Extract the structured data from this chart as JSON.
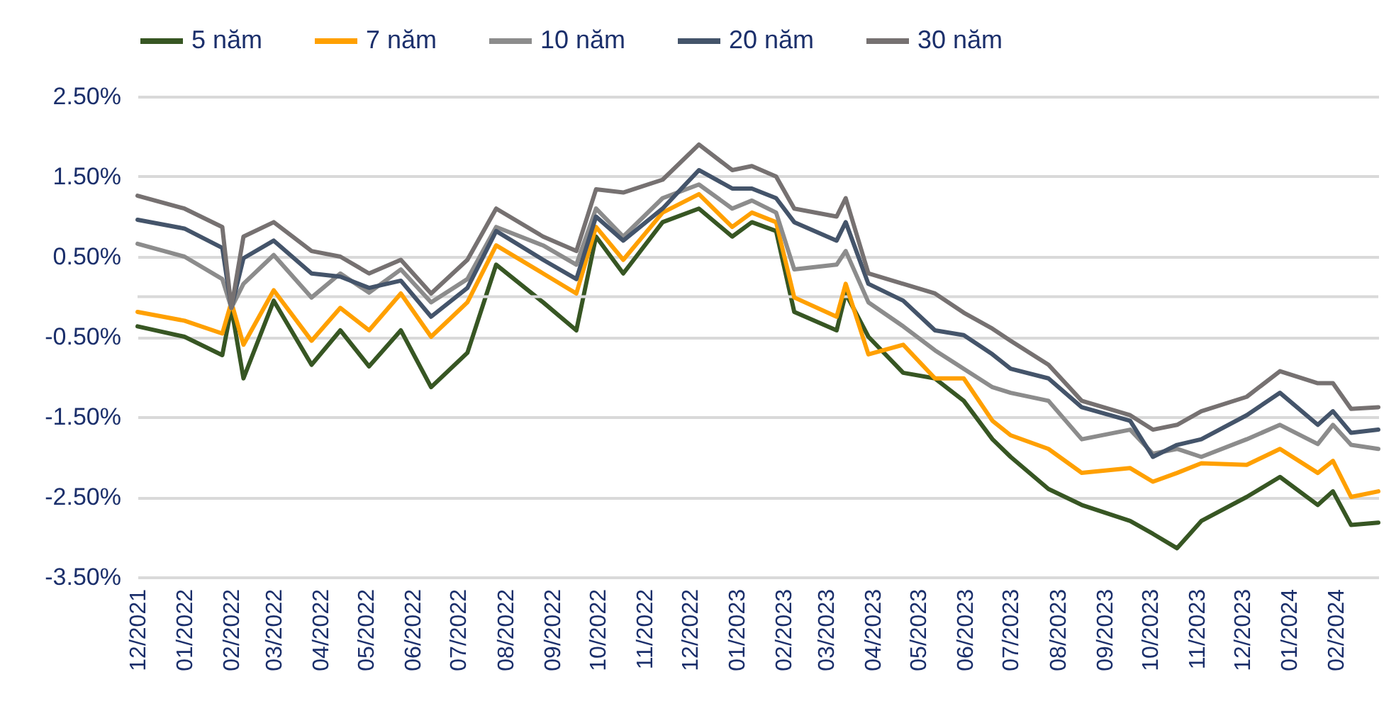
{
  "chart_data": {
    "type": "line",
    "x": [
      "2021-12-01",
      "2022-01-01",
      "2022-01-26",
      "2022-02-01",
      "2022-02-09",
      "2022-03-01",
      "2022-03-26",
      "2022-04-14",
      "2022-05-03",
      "2022-05-24",
      "2022-06-13",
      "2022-07-07",
      "2022-07-26",
      "2022-08-26",
      "2022-09-17",
      "2022-09-30",
      "2022-10-18",
      "2022-11-13",
      "2022-12-07",
      "2022-12-29",
      "2023-01-11",
      "2023-01-27",
      "2023-02-08",
      "2023-03-08",
      "2023-03-14",
      "2023-03-29",
      "2023-04-21",
      "2023-05-12",
      "2023-05-31",
      "2023-06-19",
      "2023-07-01",
      "2023-07-26",
      "2023-08-17",
      "2023-09-18",
      "2023-10-03",
      "2023-10-19",
      "2023-11-04",
      "2023-12-04",
      "2023-12-26",
      "2024-01-20",
      "2024-01-30",
      "2024-02-11",
      "2024-02-29"
    ],
    "series": [
      {
        "name": "5 năm",
        "color": "#375623",
        "values": [
          -0.37,
          -0.5,
          -0.73,
          -0.14,
          -1.02,
          -0.05,
          -0.85,
          -0.42,
          -0.87,
          -0.42,
          -1.13,
          -0.7,
          0.4,
          -0.07,
          -0.42,
          0.75,
          0.29,
          0.93,
          1.1,
          0.75,
          0.93,
          0.82,
          -0.19,
          -0.42,
          0.04,
          -0.5,
          -0.95,
          -1.02,
          -1.3,
          -1.78,
          -2.0,
          -2.4,
          -2.6,
          -2.8,
          -2.96,
          -3.14,
          -2.8,
          -2.5,
          -2.25,
          -2.6,
          -2.43,
          -2.85,
          -2.82
        ]
      },
      {
        "name": "7 năm",
        "color": "#ffa000",
        "values": [
          -0.19,
          -0.3,
          -0.46,
          -0.07,
          -0.6,
          0.08,
          -0.55,
          -0.14,
          -0.42,
          0.04,
          -0.5,
          -0.07,
          0.64,
          0.29,
          0.04,
          0.87,
          0.46,
          1.05,
          1.28,
          0.87,
          1.05,
          0.93,
          -0.01,
          -0.25,
          0.16,
          -0.72,
          -0.6,
          -1.02,
          -1.02,
          -1.55,
          -1.73,
          -1.9,
          -2.2,
          -2.14,
          -2.31,
          -2.2,
          -2.08,
          -2.1,
          -1.9,
          -2.2,
          -2.05,
          -2.5,
          -2.43
        ]
      },
      {
        "name": "10 năm",
        "color": "#8c8c8c",
        "values": [
          0.66,
          0.5,
          0.22,
          -0.14,
          0.16,
          0.52,
          -0.01,
          0.29,
          0.05,
          0.34,
          -0.07,
          0.22,
          0.87,
          0.64,
          0.4,
          1.1,
          0.75,
          1.23,
          1.4,
          1.1,
          1.2,
          1.05,
          0.34,
          0.4,
          0.57,
          -0.07,
          -0.37,
          -0.67,
          -0.9,
          -1.13,
          -1.2,
          -1.3,
          -1.78,
          -1.66,
          -1.96,
          -1.9,
          -2.0,
          -1.78,
          -1.6,
          -1.84,
          -1.6,
          -1.85,
          -1.9
        ]
      },
      {
        "name": "20 năm",
        "color": "#44546a",
        "values": [
          0.96,
          0.85,
          0.61,
          -0.14,
          0.48,
          0.7,
          0.29,
          0.25,
          0.11,
          0.2,
          -0.25,
          0.11,
          0.82,
          0.46,
          0.22,
          1.0,
          0.7,
          1.1,
          1.58,
          1.35,
          1.35,
          1.23,
          0.93,
          0.7,
          0.93,
          0.16,
          -0.05,
          -0.42,
          -0.48,
          -0.72,
          -0.9,
          -1.02,
          -1.38,
          -1.55,
          -2.0,
          -1.85,
          -1.78,
          -1.48,
          -1.2,
          -1.6,
          -1.43,
          -1.7,
          -1.66
        ]
      },
      {
        "name": "30 năm",
        "color": "#767171",
        "values": [
          1.26,
          1.1,
          0.87,
          -0.14,
          0.75,
          0.93,
          0.57,
          0.5,
          0.29,
          0.46,
          0.04,
          0.46,
          1.1,
          0.75,
          0.57,
          1.34,
          1.3,
          1.46,
          1.9,
          1.58,
          1.63,
          1.5,
          1.1,
          1.0,
          1.23,
          0.29,
          0.16,
          0.04,
          -0.2,
          -0.4,
          -0.55,
          -0.85,
          -1.3,
          -1.48,
          -1.66,
          -1.6,
          -1.43,
          -1.25,
          -0.93,
          -1.08,
          -1.08,
          -1.4,
          -1.38
        ]
      }
    ],
    "xlim": [
      "2021-12-01",
      "2024-02-29"
    ],
    "xticks": [
      {
        "value": "2021-12-01",
        "label": "12/2021"
      },
      {
        "value": "2022-01-01",
        "label": "01/2022"
      },
      {
        "value": "2022-02-01",
        "label": "02/2022"
      },
      {
        "value": "2022-03-01",
        "label": "03/2022"
      },
      {
        "value": "2022-04-01",
        "label": "04/2022"
      },
      {
        "value": "2022-05-01",
        "label": "05/2022"
      },
      {
        "value": "2022-06-01",
        "label": "06/2022"
      },
      {
        "value": "2022-07-01",
        "label": "07/2022"
      },
      {
        "value": "2022-08-01",
        "label": "08/2022"
      },
      {
        "value": "2022-09-01",
        "label": "09/2022"
      },
      {
        "value": "2022-10-01",
        "label": "10/2022"
      },
      {
        "value": "2022-11-01",
        "label": "11/2022"
      },
      {
        "value": "2022-12-01",
        "label": "12/2022"
      },
      {
        "value": "2023-01-01",
        "label": "01/2023"
      },
      {
        "value": "2023-02-01",
        "label": "02/2023"
      },
      {
        "value": "2023-03-01",
        "label": "03/2023"
      },
      {
        "value": "2023-04-01",
        "label": "04/2023"
      },
      {
        "value": "2023-05-01",
        "label": "05/2023"
      },
      {
        "value": "2023-06-01",
        "label": "06/2023"
      },
      {
        "value": "2023-07-01",
        "label": "07/2023"
      },
      {
        "value": "2023-08-01",
        "label": "08/2023"
      },
      {
        "value": "2023-09-01",
        "label": "09/2023"
      },
      {
        "value": "2023-10-01",
        "label": "10/2023"
      },
      {
        "value": "2023-11-01",
        "label": "11/2023"
      },
      {
        "value": "2023-12-01",
        "label": "12/2023"
      },
      {
        "value": "2024-01-01",
        "label": "01/2024"
      },
      {
        "value": "2024-02-01",
        "label": "02/2024"
      }
    ],
    "ylim": [
      -3.5,
      2.5
    ],
    "yticks": [
      {
        "value": -3.5,
        "label": "-3.50%"
      },
      {
        "value": -2.5,
        "label": "-2.50%"
      },
      {
        "value": -1.5,
        "label": "-1.50%"
      },
      {
        "value": -0.5,
        "label": "-0.50%"
      },
      {
        "value": 0.5,
        "label": "0.50%"
      },
      {
        "value": 1.5,
        "label": "1.50%"
      },
      {
        "value": 2.5,
        "label": "2.50%"
      }
    ],
    "ref_lines": [
      {
        "axis": "y",
        "value": 0,
        "color": "#d9d9d9"
      }
    ],
    "grid": "y",
    "legend": "top",
    "marker": "none",
    "line_style": "solid"
  }
}
